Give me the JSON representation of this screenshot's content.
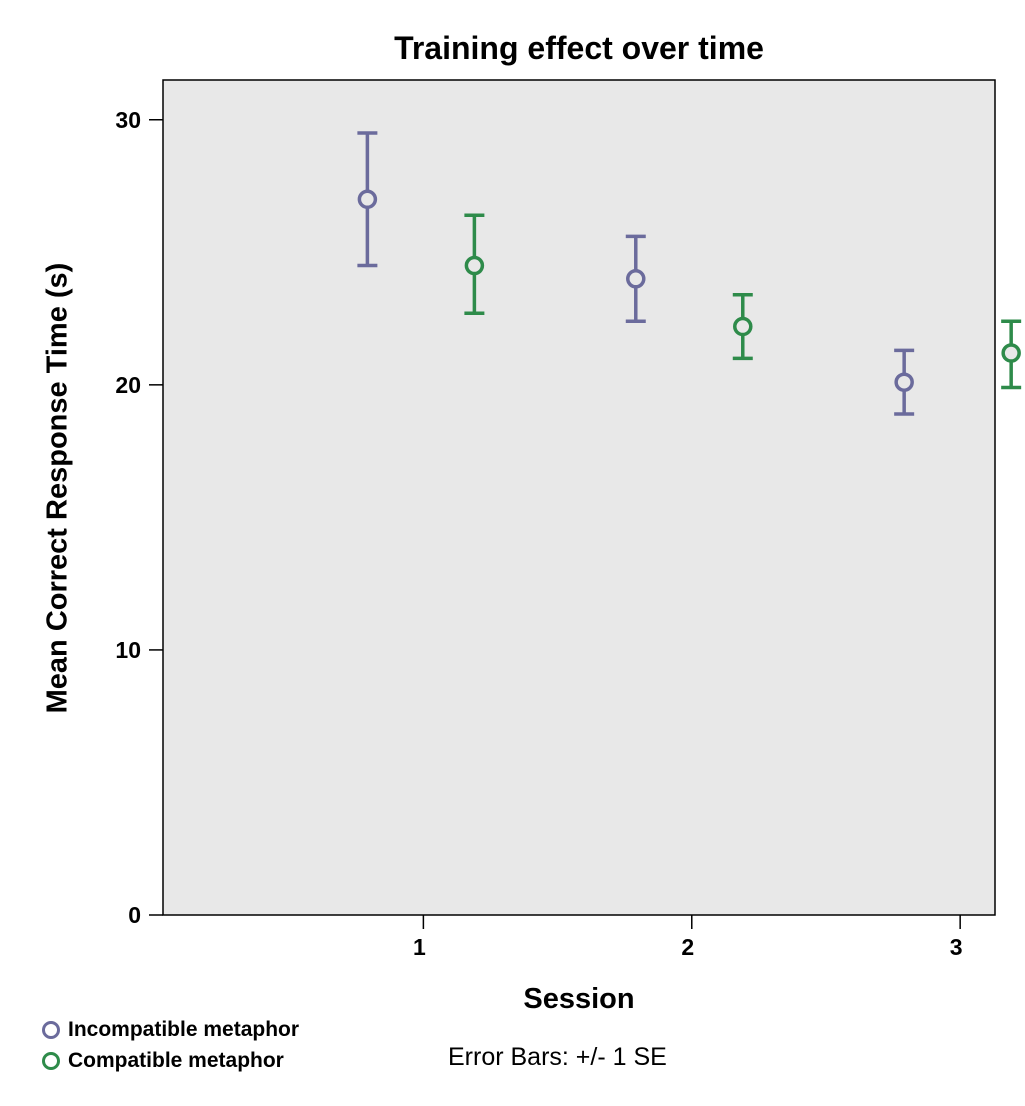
{
  "chart_data": {
    "type": "scatter",
    "title": "Training effect over time",
    "xlabel": "Session",
    "ylabel": "Mean Correct Response Time (s)",
    "categories": [
      "1",
      "2",
      "3"
    ],
    "ylim": [
      0,
      30
    ],
    "yticks": [
      "0",
      "10",
      "20",
      "30"
    ],
    "grid": false,
    "legend_position": "bottom-left",
    "error_bar_note": "Error Bars: +/- 1 SE",
    "series": [
      {
        "name": "Incompatible metaphor",
        "color": "#6b6b9c",
        "values": [
          27.0,
          24.0,
          20.1
        ],
        "error_low": [
          24.5,
          22.4,
          18.9
        ],
        "error_high": [
          29.5,
          25.6,
          21.3
        ]
      },
      {
        "name": "Compatible metaphor",
        "color": "#2e8b4a",
        "values": [
          24.5,
          22.2,
          21.2
        ],
        "error_low": [
          22.7,
          21.0,
          19.9
        ],
        "error_high": [
          26.4,
          23.4,
          22.4
        ]
      }
    ],
    "plot_background": "#e8e8e8"
  }
}
